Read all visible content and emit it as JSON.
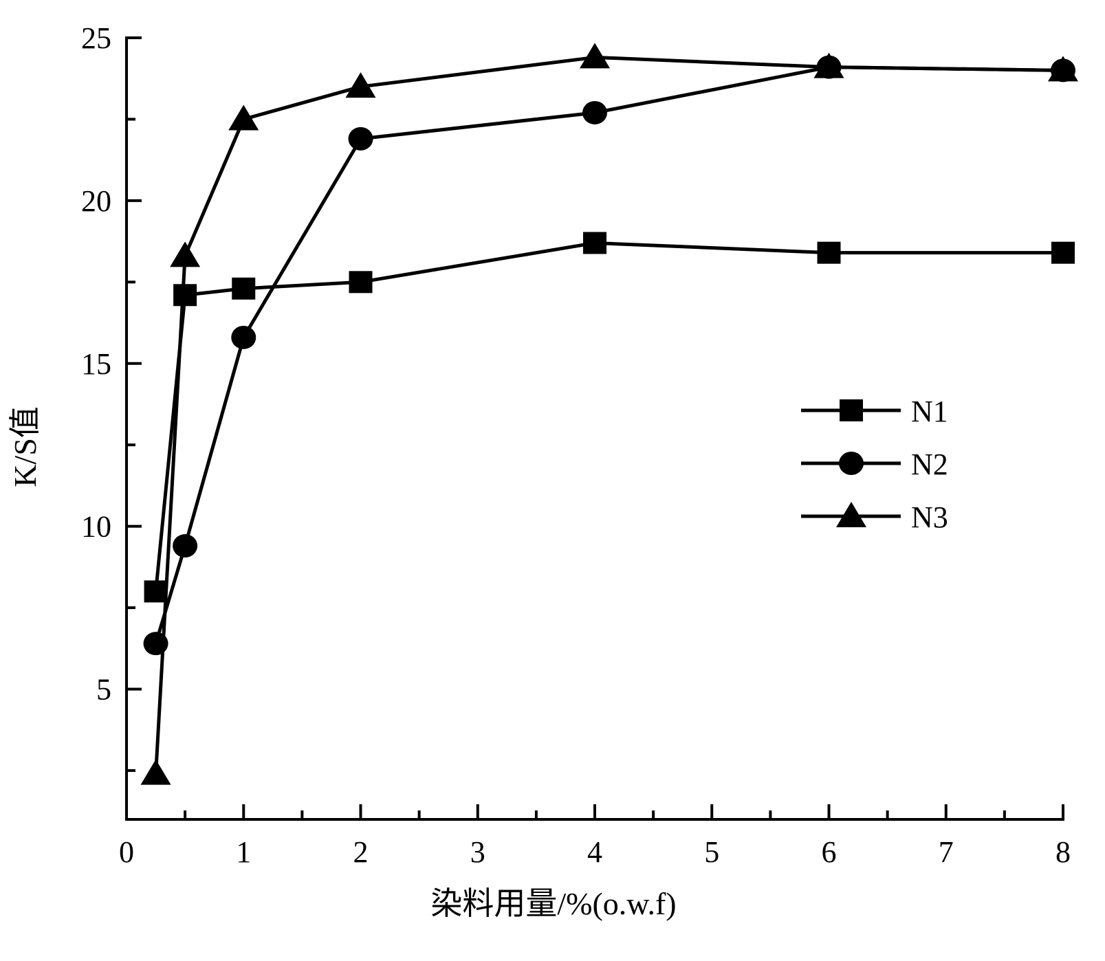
{
  "chart_data": {
    "type": "line",
    "title": "",
    "xlabel": "染料用量/%(o.w.f)",
    "ylabel": "K/S值",
    "xlim": [
      0,
      8
    ],
    "ylim": [
      1,
      25
    ],
    "x_ticks": [
      "0",
      "1",
      "2",
      "3",
      "4",
      "5",
      "6",
      "7",
      "8"
    ],
    "y_ticks": [
      "5",
      "10",
      "15",
      "20",
      "25"
    ],
    "grid": false,
    "legend_position": "center-right",
    "x": [
      0.25,
      0.5,
      1,
      2,
      4,
      6,
      8
    ],
    "series": [
      {
        "name": "N1",
        "marker": "square",
        "values": [
          8.0,
          17.1,
          17.3,
          17.5,
          18.7,
          18.4,
          18.4
        ]
      },
      {
        "name": "N2",
        "marker": "circle",
        "values": [
          6.4,
          9.4,
          15.8,
          21.9,
          22.7,
          24.1,
          24.0
        ]
      },
      {
        "name": "N3",
        "marker": "triangle",
        "values": [
          2.4,
          18.3,
          22.5,
          23.5,
          24.4,
          24.1,
          24.0
        ]
      }
    ],
    "color": "#000000"
  }
}
